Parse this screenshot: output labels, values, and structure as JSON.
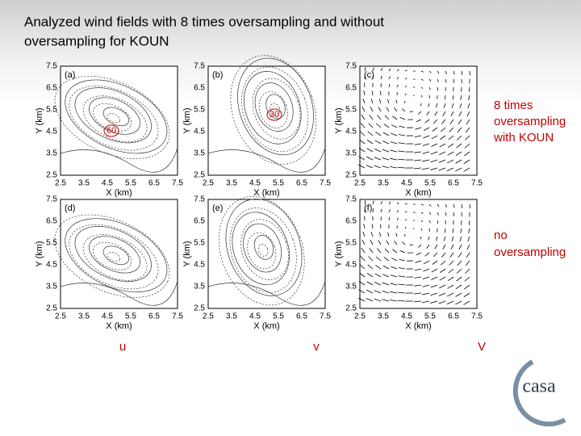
{
  "title_lines": [
    "Analyzed wind fields with 8 times oversampling and without",
    "oversampling for KOUN"
  ],
  "panels": [
    {
      "label": "(a)"
    },
    {
      "label": "(b)"
    },
    {
      "label": "(c)"
    },
    {
      "label": "(d)"
    },
    {
      "label": "(e)"
    },
    {
      "label": "(f)"
    }
  ],
  "x_ticks": [
    "2.5",
    "3.5",
    "4.5",
    "5.5",
    "6.5",
    "7.5"
  ],
  "y_ticks": [
    "7.5",
    "6.5",
    "5.5",
    "4.5",
    "3.5",
    "2.5"
  ],
  "x_label": "X (km)",
  "y_label": "Y (km)",
  "annotations": [
    "60",
    "30"
  ],
  "side_notes": {
    "top": [
      "8 times",
      "oversampling",
      "with KOUN"
    ],
    "bottom": [
      "no",
      "oversampling"
    ]
  },
  "column_labels": [
    "u",
    "v",
    "V"
  ],
  "logo": "casa"
}
